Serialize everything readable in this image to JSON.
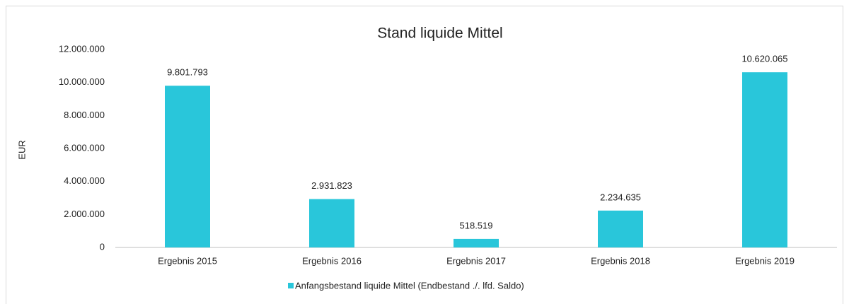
{
  "chart_data": {
    "type": "bar",
    "title": "Stand liquide Mittel",
    "y_label": "EUR",
    "categories": [
      "Ergebnis 2015",
      "Ergebnis 2016",
      "Ergebnis 2017",
      "Ergebnis 2018",
      "Ergebnis 2019"
    ],
    "series": [
      {
        "name": "Anfangsbestand liquide Mittel (Endbestand ./. lfd. Saldo)",
        "color": "#29c6da",
        "values": [
          9801793,
          2931823,
          518519,
          2234635,
          10620065
        ],
        "value_labels": [
          "9.801.793",
          "2.931.823",
          "518.519",
          "2.234.635",
          "10.620.065"
        ]
      }
    ],
    "ylim": [
      0,
      12000000
    ],
    "yticks": [
      0,
      {
        "value": 2000000,
        "label": "2.000.000"
      },
      {
        "value": 4000000,
        "label": "4.000.000"
      },
      {
        "value": 6000000,
        "label": "6.000.000"
      },
      {
        "value": 8000000,
        "label": "8.000.000"
      },
      {
        "value": 10000000,
        "label": "10.000.000"
      },
      {
        "value": 12000000,
        "label": "12.000.000"
      }
    ],
    "grid": false,
    "legend": "bottom"
  }
}
